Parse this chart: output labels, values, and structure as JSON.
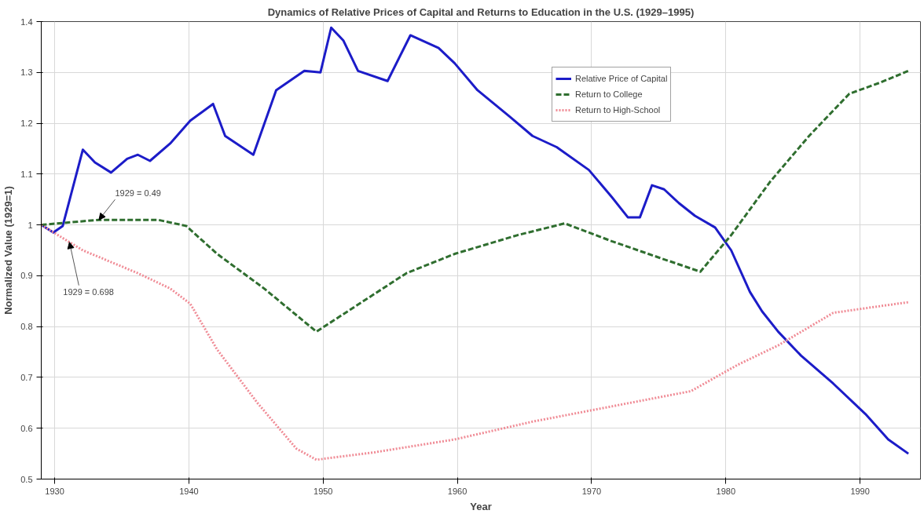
{
  "chart_data": {
    "type": "line",
    "title": "Dynamics of Relative Prices of Capital and Returns to Education in the U.S. (1929–1995)",
    "xlabel": "Year",
    "ylabel": "Normalized Value (1929=1)",
    "xlim": [
      1929,
      1994.5
    ],
    "ylim": [
      0.5,
      1.4
    ],
    "xticks": [
      1930,
      1940,
      1950,
      1960,
      1970,
      1980,
      1990
    ],
    "yticks": [
      0.5,
      0.6,
      0.7,
      0.8,
      0.9,
      1,
      1.1,
      1.2,
      1.3,
      1.4
    ],
    "grid": true,
    "legend": "top right",
    "series": [
      {
        "name": "Relative Price of Capital",
        "color": "#1c1cc8",
        "line_style": "solid",
        "x": [
          1929.0,
          1929.9,
          1930.6,
          1932.1,
          1933.0,
          1934.2,
          1935.4,
          1936.2,
          1937.1,
          1938.6,
          1940.1,
          1941.8,
          1942.7,
          1944.8,
          1946.5,
          1948.6,
          1949.8,
          1950.6,
          1951.5,
          1952.6,
          1954.8,
          1956.5,
          1958.6,
          1959.8,
          1961.5,
          1963.9,
          1965.6,
          1967.4,
          1969.8,
          1971.5,
          1972.7,
          1973.6,
          1974.5,
          1975.4,
          1976.5,
          1977.7,
          1979.2,
          1980.4,
          1981.8,
          1982.7,
          1983.9,
          1985.6,
          1988.0,
          1990.4,
          1992.1,
          1993.6
        ],
        "values": [
          1.0,
          0.985,
          0.998,
          1.148,
          1.123,
          1.103,
          1.13,
          1.138,
          1.126,
          1.16,
          1.205,
          1.238,
          1.175,
          1.138,
          1.265,
          1.303,
          1.3,
          1.388,
          1.363,
          1.303,
          1.283,
          1.373,
          1.348,
          1.318,
          1.265,
          1.213,
          1.175,
          1.153,
          1.108,
          1.055,
          1.015,
          1.015,
          1.078,
          1.07,
          1.043,
          1.018,
          0.995,
          0.95,
          0.868,
          0.83,
          0.79,
          0.743,
          0.688,
          0.628,
          0.578,
          0.55
        ]
      },
      {
        "name": "Return to College",
        "color": "#2f6e2f",
        "line_style": "dashed",
        "x": [
          1929.0,
          1933.3,
          1937.7,
          1939.8,
          1942.1,
          1945.6,
          1949.5,
          1952.7,
          1956.2,
          1959.8,
          1964.5,
          1968.0,
          1971.5,
          1975.1,
          1978.1,
          1980.4,
          1983.3,
          1986.2,
          1989.2,
          1991.5,
          1993.6
        ],
        "values": [
          1.0,
          1.01,
          1.01,
          0.998,
          0.943,
          0.875,
          0.79,
          0.845,
          0.905,
          0.943,
          0.98,
          1.003,
          0.968,
          0.935,
          0.908,
          0.98,
          1.085,
          1.175,
          1.258,
          1.28,
          1.303
        ]
      },
      {
        "name": "Return to High-School",
        "color": "#f08c96",
        "line_style": "dotted",
        "x": [
          1929.0,
          1932.1,
          1936.2,
          1938.6,
          1940.1,
          1942.1,
          1945.1,
          1948.0,
          1949.5,
          1953.9,
          1959.8,
          1965.6,
          1971.5,
          1977.4,
          1980.9,
          1983.9,
          1988.0,
          1990.9,
          1993.6
        ],
        "values": [
          1.0,
          0.95,
          0.905,
          0.875,
          0.845,
          0.755,
          0.65,
          0.56,
          0.538,
          0.553,
          0.578,
          0.613,
          0.643,
          0.673,
          0.725,
          0.763,
          0.827,
          0.838,
          0.848
        ]
      }
    ],
    "annotations": [
      {
        "text": "1929 = 0.49",
        "x": 1933.3,
        "y": 1.01
      },
      {
        "text": "1929 = 0.698",
        "x": 1931.1,
        "y": 0.966
      }
    ]
  }
}
